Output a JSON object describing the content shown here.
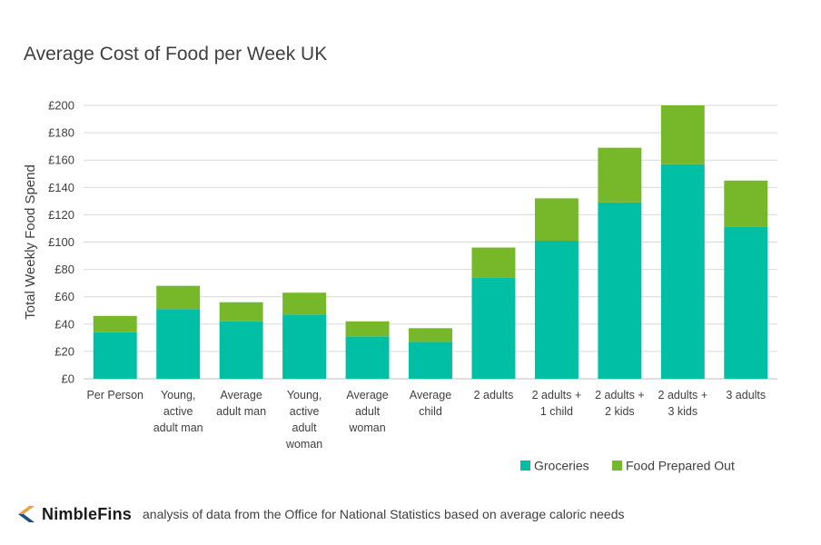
{
  "chart_data": {
    "type": "bar",
    "stacked": true,
    "title": "Average Cost of Food per Week UK",
    "ylabel": "Total Weekly Food Spend",
    "xlabel": "",
    "ylim": [
      0,
      200
    ],
    "yticks": [
      "£0",
      "£20",
      "£40",
      "£60",
      "£80",
      "£100",
      "£120",
      "£140",
      "£160",
      "£180",
      "£200"
    ],
    "ytick_values": [
      0,
      20,
      40,
      60,
      80,
      100,
      120,
      140,
      160,
      180,
      200
    ],
    "grid": true,
    "legend_position": "bottom-right",
    "categories": [
      [
        "Per Person"
      ],
      [
        "Young,",
        "active",
        "adult man"
      ],
      [
        "Average",
        "adult man"
      ],
      [
        "Young,",
        "active",
        "adult",
        "woman"
      ],
      [
        "Average",
        "adult",
        "woman"
      ],
      [
        "Average",
        "child"
      ],
      [
        "2 adults"
      ],
      [
        "2 adults +",
        "1 child"
      ],
      [
        "2 adults +",
        "2 kids"
      ],
      [
        "2 adults +",
        "3 kids"
      ],
      [
        "3 adults"
      ]
    ],
    "series": [
      {
        "name": "Groceries",
        "color": "#00bfa5",
        "values": [
          34,
          51,
          42,
          47,
          31,
          27,
          74,
          101,
          129,
          157,
          111
        ]
      },
      {
        "name": "Food Prepared Out",
        "color": "#76b82a",
        "values": [
          12,
          17,
          14,
          16,
          11,
          10,
          22,
          31,
          40,
          43,
          34
        ]
      }
    ]
  },
  "footer": {
    "brand": "NimbleFins",
    "source": "analysis of data from the Office for National Statistics based on average caloric needs",
    "logo_icon": "chevron-logo-icon"
  }
}
